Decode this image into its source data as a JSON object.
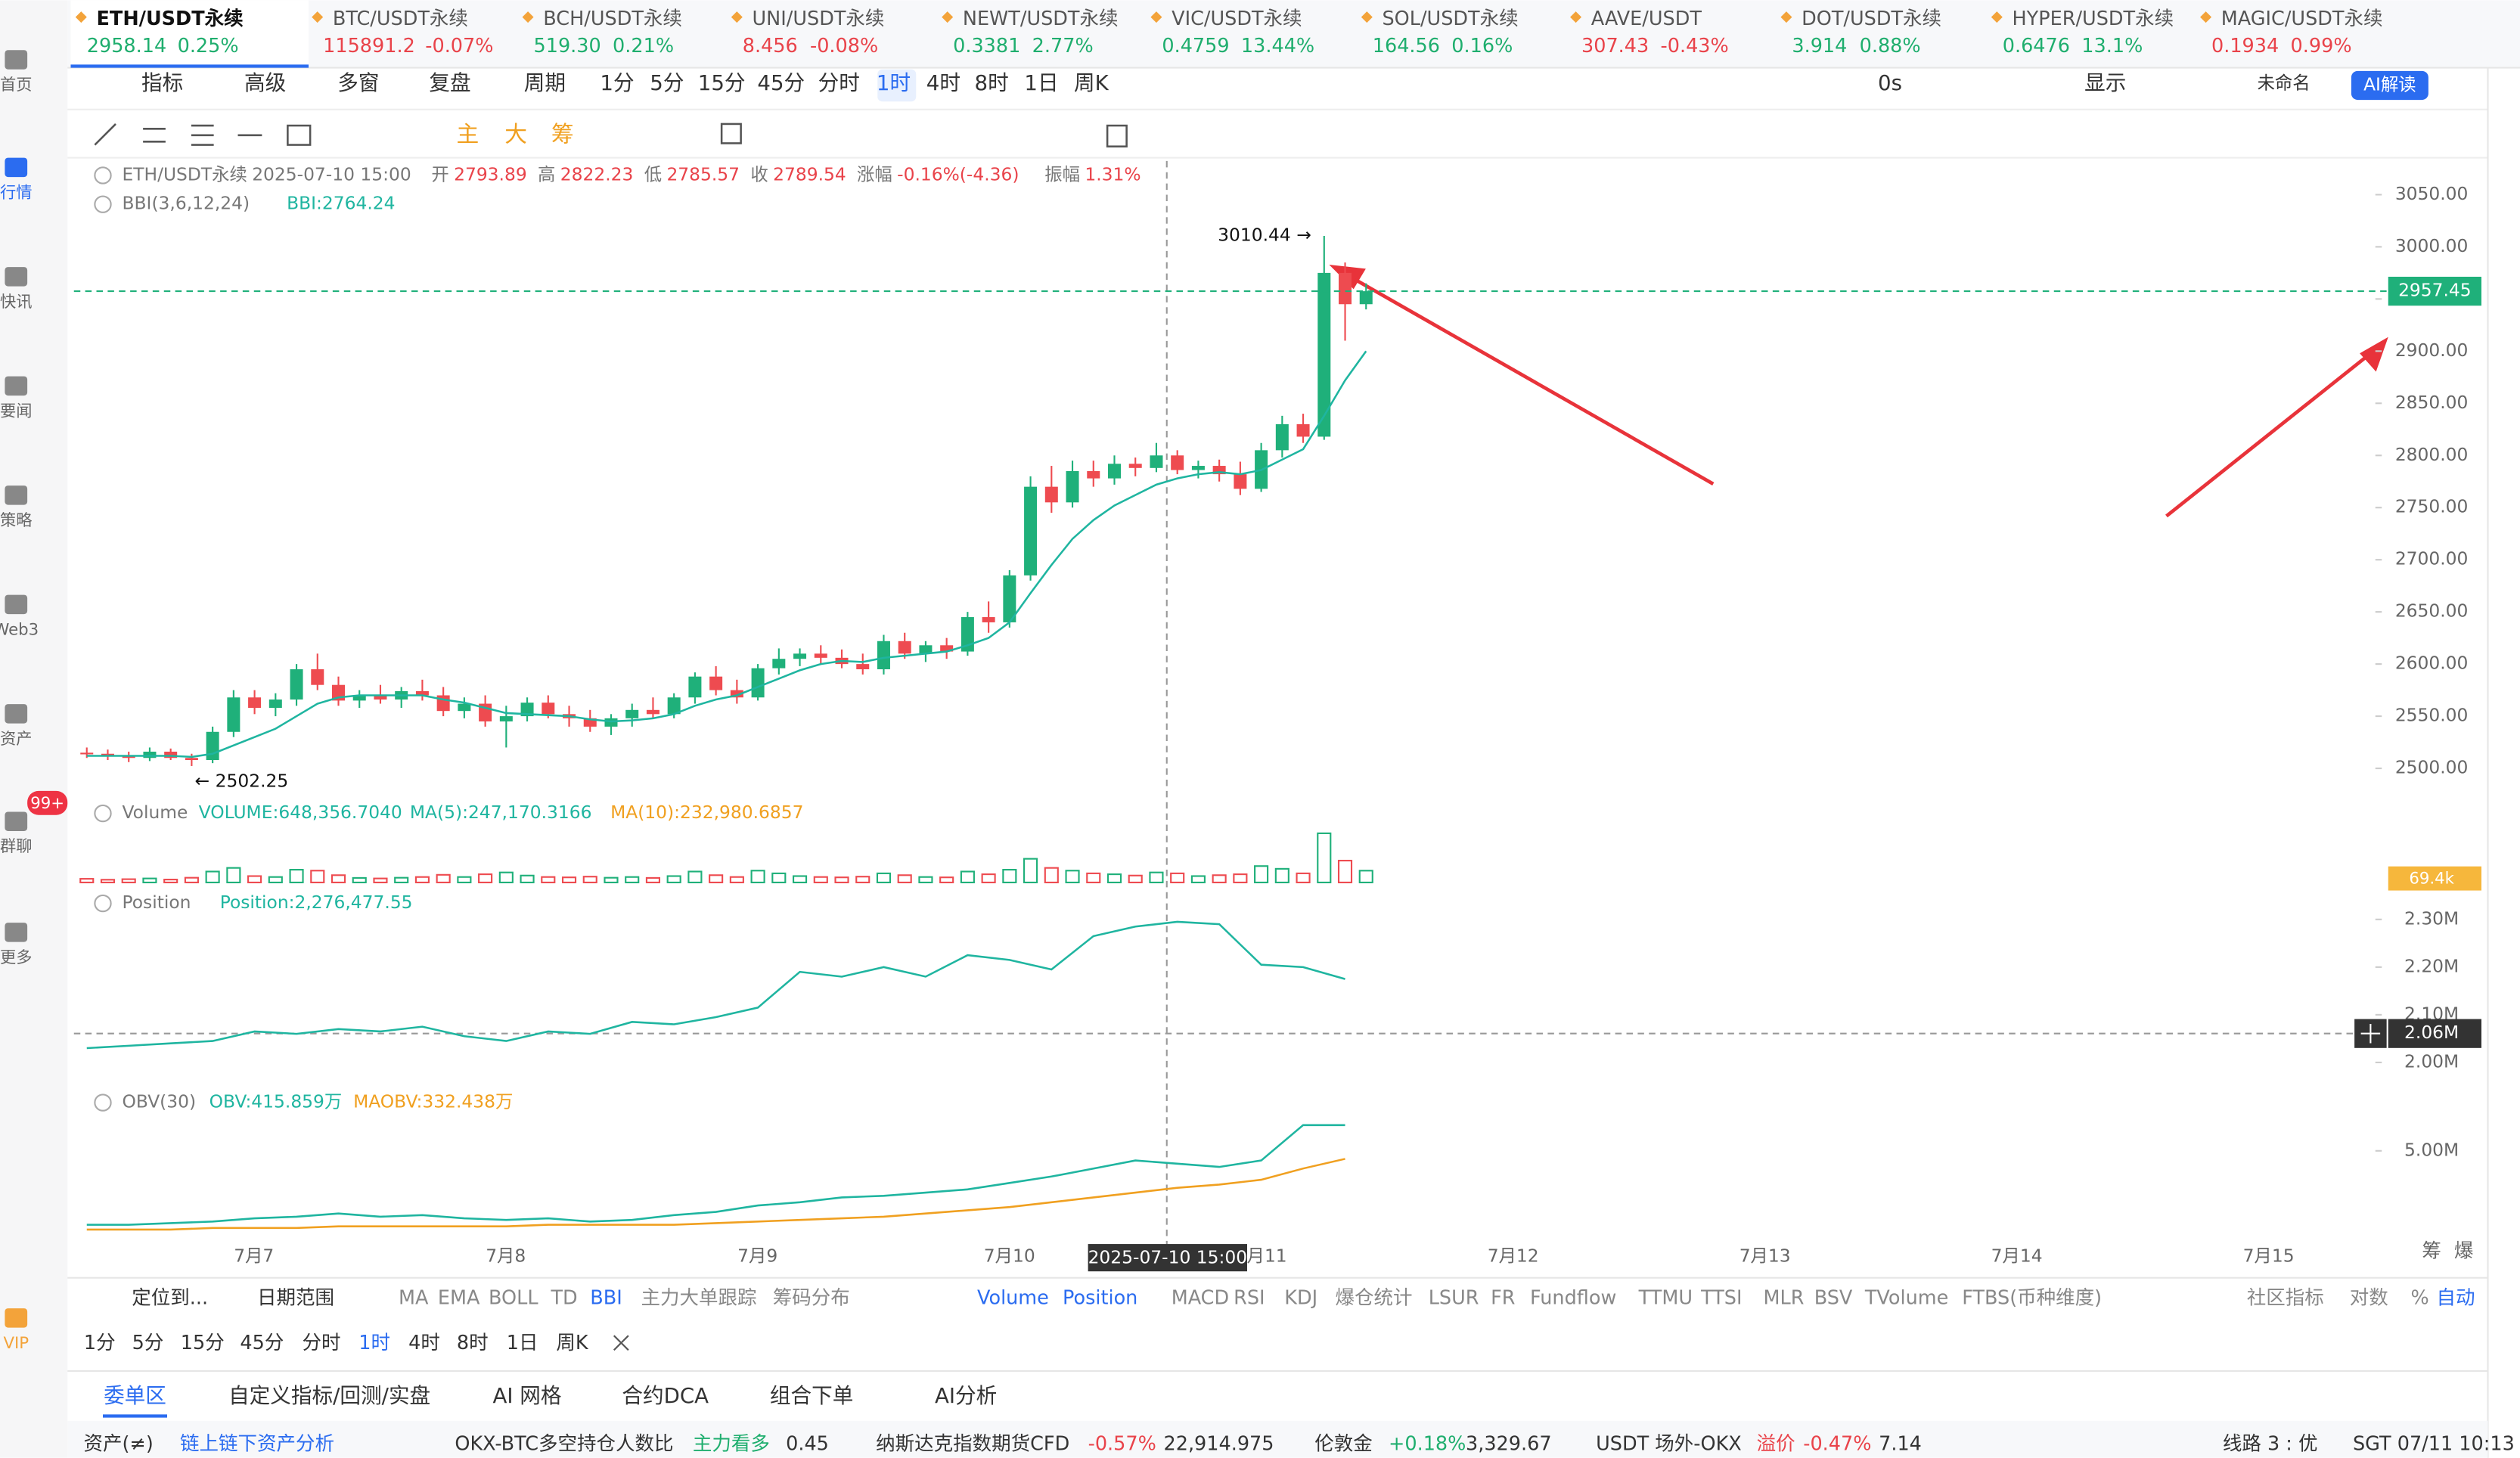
{
  "tickers": [
    {
      "symbol": "ETH/USDT永续",
      "price": "2958.14",
      "change": "0.25%",
      "color": "#1fae6e"
    },
    {
      "symbol": "BTC/USDT永续",
      "price": "115891.2",
      "change": "-0.07%",
      "color": "#e9434a"
    },
    {
      "symbol": "BCH/USDT永续",
      "price": "519.30",
      "change": "0.21%",
      "color": "#1fae6e"
    },
    {
      "symbol": "UNI/USDT永续",
      "price": "8.456",
      "change": "-0.08%",
      "color": "#e9434a"
    },
    {
      "symbol": "NEWT/USDT永续",
      "price": "0.3381",
      "change": "2.77%",
      "color": "#1fae6e"
    },
    {
      "symbol": "VIC/USDT永续",
      "price": "0.4759",
      "change": "13.44%",
      "color": "#1fae6e"
    },
    {
      "symbol": "SOL/USDT永续",
      "price": "164.56",
      "change": "0.16%",
      "color": "#1fae6e"
    },
    {
      "symbol": "AAVE/USDT",
      "price": "307.43",
      "change": "-0.43%",
      "color": "#e9434a"
    },
    {
      "symbol": "DOT/USDT永续",
      "price": "3.914",
      "change": "0.88%",
      "color": "#1fae6e"
    },
    {
      "symbol": "HYPER/USDT永续",
      "price": "0.6476",
      "change": "13.1%",
      "color": "#1fae6e"
    },
    {
      "symbol": "MAGIC/USDT永续",
      "price": "0.1934",
      "change": "0.99%",
      "color": "#e9434a"
    }
  ],
  "sidebar": {
    "items": [
      "首页",
      "行情",
      "快讯",
      "要闻",
      "策略",
      "Web3",
      "资产",
      "群聊",
      "更多",
      "VIP"
    ],
    "badge": "99+"
  },
  "toolbar": {
    "left": [
      "指标",
      "高级",
      "多窗",
      "复盘"
    ],
    "period": "周期",
    "intervals": [
      "1分",
      "5分",
      "15分",
      "45分",
      "分时",
      "1时",
      "4时",
      "8时",
      "1日",
      "周K"
    ],
    "right": [
      "0s",
      "显示",
      "未命名"
    ],
    "ai": "AI解读"
  },
  "draw_tools": [
    "主",
    "大",
    "筹"
  ],
  "chart_data": [
    {
      "type": "candlestick",
      "legend": {
        "symbol": "ETH/USDT永续",
        "time": "2025-07-10 15:00",
        "fields": [
          [
            "开",
            "2793.89"
          ],
          [
            "高",
            "2822.23"
          ],
          [
            "低",
            "2785.57"
          ],
          [
            "收",
            "2789.54"
          ],
          [
            "涨幅",
            "-0.16%(-4.36)"
          ],
          [
            "振幅",
            "1.31%"
          ]
        ]
      },
      "indicator": {
        "name": "BBI(3,6,12,24)",
        "value": "BBI:2764.24",
        "color": "#1fb5a0"
      },
      "annotations": {
        "high": "3010.44 →",
        "low": "← 2502.25"
      },
      "last_price": {
        "value": 2957.45,
        "label": "2957.45"
      },
      "crosshair_time": "2025-07-10 15:00",
      "xticks": [
        "7月7",
        "7月8",
        "7月9",
        "7月10",
        "7月11",
        "7月12",
        "7月13",
        "7月14",
        "7月15"
      ],
      "ylim": [
        2481.5,
        3082.35
      ],
      "yticks": [
        {
          "value": 3050,
          "label": "3050.00"
        },
        {
          "value": 3000,
          "label": "3000.00"
        },
        {
          "value": 2950,
          "label": "2950.00"
        },
        {
          "value": 2900,
          "label": "2900.00"
        },
        {
          "value": 2850,
          "label": "2850.00"
        },
        {
          "value": 2800,
          "label": "2800.00"
        },
        {
          "value": 2750,
          "label": "2750.00"
        },
        {
          "value": 2700,
          "label": "2700.00"
        },
        {
          "value": 2650,
          "label": "2650.00"
        },
        {
          "value": 2600,
          "label": "2600.00"
        },
        {
          "value": 2550,
          "label": "2550.00"
        },
        {
          "value": 2500,
          "label": "2500.00"
        }
      ],
      "up_color": "#1fb07a",
      "down_color": "#ee4b50",
      "candles": [
        [
          2515,
          2520,
          2510,
          2514
        ],
        [
          2514,
          2518,
          2508,
          2512
        ],
        [
          2512,
          2516,
          2506,
          2510
        ],
        [
          2510,
          2520,
          2507,
          2516
        ],
        [
          2516,
          2519,
          2508,
          2510
        ],
        [
          2510,
          2514,
          2502.25,
          2508
        ],
        [
          2508,
          2540,
          2505,
          2535
        ],
        [
          2535,
          2575,
          2530,
          2568
        ],
        [
          2568,
          2575,
          2552,
          2558
        ],
        [
          2558,
          2572,
          2550,
          2566
        ],
        [
          2566,
          2600,
          2560,
          2595
        ],
        [
          2595,
          2610,
          2575,
          2580
        ],
        [
          2580,
          2588,
          2560,
          2565
        ],
        [
          2565,
          2575,
          2558,
          2570
        ],
        [
          2570,
          2580,
          2562,
          2566
        ],
        [
          2566,
          2578,
          2558,
          2574
        ],
        [
          2574,
          2585,
          2565,
          2570
        ],
        [
          2570,
          2578,
          2550,
          2555
        ],
        [
          2555,
          2568,
          2548,
          2562
        ],
        [
          2562,
          2570,
          2540,
          2545
        ],
        [
          2545,
          2560,
          2520,
          2550
        ],
        [
          2550,
          2568,
          2545,
          2563
        ],
        [
          2563,
          2570,
          2548,
          2552
        ],
        [
          2552,
          2560,
          2540,
          2548
        ],
        [
          2548,
          2556,
          2535,
          2540
        ],
        [
          2540,
          2552,
          2532,
          2548
        ],
        [
          2548,
          2562,
          2540,
          2556
        ],
        [
          2556,
          2568,
          2548,
          2552
        ],
        [
          2552,
          2572,
          2548,
          2568
        ],
        [
          2568,
          2592,
          2562,
          2588
        ],
        [
          2588,
          2598,
          2570,
          2575
        ],
        [
          2575,
          2585,
          2562,
          2568
        ],
        [
          2568,
          2600,
          2565,
          2596
        ],
        [
          2596,
          2615,
          2590,
          2605
        ],
        [
          2605,
          2615,
          2598,
          2610
        ],
        [
          2610,
          2618,
          2600,
          2606
        ],
        [
          2606,
          2614,
          2596,
          2600
        ],
        [
          2600,
          2610,
          2590,
          2595
        ],
        [
          2595,
          2628,
          2590,
          2622
        ],
        [
          2622,
          2630,
          2605,
          2610
        ],
        [
          2610,
          2622,
          2602,
          2618
        ],
        [
          2618,
          2625,
          2605,
          2612
        ],
        [
          2612,
          2650,
          2608,
          2645
        ],
        [
          2645,
          2660,
          2630,
          2640
        ],
        [
          2640,
          2690,
          2635,
          2685
        ],
        [
          2685,
          2780,
          2680,
          2770
        ],
        [
          2770,
          2790,
          2745,
          2755
        ],
        [
          2755,
          2795,
          2750,
          2785
        ],
        [
          2785,
          2795,
          2770,
          2778
        ],
        [
          2778,
          2800,
          2772,
          2792
        ],
        [
          2792,
          2798,
          2780,
          2788
        ],
        [
          2788,
          2812,
          2784,
          2800
        ],
        [
          2800,
          2805,
          2782,
          2786
        ],
        [
          2786,
          2795,
          2778,
          2790
        ],
        [
          2790,
          2796,
          2775,
          2782
        ],
        [
          2782,
          2794,
          2762,
          2768
        ],
        [
          2768,
          2812,
          2765,
          2805
        ],
        [
          2805,
          2838,
          2798,
          2830
        ],
        [
          2830,
          2840,
          2812,
          2818
        ],
        [
          2818,
          3010.44,
          2815,
          2975
        ],
        [
          2975,
          2985,
          2910,
          2945
        ],
        [
          2945,
          2965,
          2940,
          2957.45
        ]
      ],
      "bbi": [
        2512,
        2512,
        2512,
        2512,
        2512,
        2511,
        2514,
        2522,
        2530,
        2538,
        2550,
        2562,
        2568,
        2570,
        2570,
        2570,
        2570,
        2566,
        2563,
        2558,
        2553,
        2552,
        2551,
        2550,
        2547,
        2545,
        2546,
        2548,
        2552,
        2560,
        2566,
        2570,
        2578,
        2586,
        2594,
        2600,
        2603,
        2602,
        2606,
        2608,
        2610,
        2612,
        2618,
        2625,
        2640,
        2668,
        2695,
        2720,
        2738,
        2752,
        2762,
        2772,
        2778,
        2782,
        2784,
        2782,
        2786,
        2796,
        2806,
        2838,
        2872,
        2900
      ]
    },
    {
      "type": "bar",
      "legend": {
        "name": "Volume",
        "fields": [
          {
            "text": "VOLUME:648,356.7040",
            "color": "#1fb5a0"
          },
          {
            "text": "MA(5):247,170.3166",
            "color": "#1fb5a0"
          },
          {
            "text": "MA(10):232,980.6857",
            "color": "#f0a020"
          }
        ]
      },
      "axis_label": "69.4k",
      "ylim": [
        0,
        3000000
      ],
      "values": [
        200000,
        150000,
        180000,
        220000,
        160000,
        260000,
        600000,
        800000,
        350000,
        300000,
        700000,
        650000,
        400000,
        250000,
        220000,
        260000,
        300000,
        420000,
        300000,
        450000,
        550000,
        380000,
        300000,
        280000,
        320000,
        260000,
        300000,
        250000,
        350000,
        600000,
        400000,
        300000,
        650000,
        500000,
        350000,
        300000,
        280000,
        320000,
        500000,
        400000,
        300000,
        280000,
        600000,
        450000,
        700000,
        1300000,
        800000,
        650000,
        500000,
        450000,
        380000,
        550000,
        500000,
        350000,
        400000,
        450000,
        900000,
        750000,
        500000,
        2700000,
        1200000,
        648356
      ]
    },
    {
      "type": "line",
      "legend": {
        "name": "Position",
        "fields": [
          {
            "text": "Position:2,276,477.55",
            "color": "#1fb5a0"
          }
        ]
      },
      "crosshair": "2.06M",
      "color": "#1fb5a0",
      "ylim": [
        1962900,
        2357300
      ],
      "yticks": [
        {
          "value": 2300000,
          "label": "2.30M"
        },
        {
          "value": 2200000,
          "label": "2.20M"
        },
        {
          "value": 2100000,
          "label": "2.10M"
        },
        {
          "value": 2000000,
          "label": "2.00M"
        }
      ],
      "series": [
        {
          "name": "Position",
          "color": "#1fb5a0",
          "values": [
            2030000,
            2035000,
            2040000,
            2045000,
            2065000,
            2060000,
            2070000,
            2065000,
            2075000,
            2055000,
            2045000,
            2065000,
            2060000,
            2085000,
            2080000,
            2095000,
            2115000,
            2190000,
            2180000,
            2200000,
            2180000,
            2225000,
            2215000,
            2195000,
            2265000,
            2285000,
            2295000,
            2290000,
            2205000,
            2200000,
            2175000
          ]
        }
      ]
    },
    {
      "type": "line",
      "legend": {
        "name": "OBV(30)",
        "fields": [
          {
            "text": "OBV:415.859万",
            "color": "#1fb5a0"
          },
          {
            "text": "MAOBV:332.438万",
            "color": "#f0a020"
          }
        ]
      },
      "ylim": [
        0,
        7500000
      ],
      "yticks": [
        {
          "value": 5000000,
          "label": "5.00M"
        }
      ],
      "series": [
        {
          "name": "OBV",
          "color": "#1fb5a0",
          "values": [
            577000,
            577000,
            673000,
            769000,
            962000,
            1058000,
            1250000,
            1058000,
            1154000,
            962000,
            865000,
            962000,
            769000,
            865000,
            1154000,
            1346000,
            1731000,
            1923000,
            2212000,
            2308000,
            2500000,
            2692000,
            3077000,
            3462000,
            3942000,
            4423000,
            4231000,
            4038000,
            4423000,
            6538000,
            6538000
          ]
        },
        {
          "name": "MAOBV",
          "color": "#f0a020",
          "values": [
            288000,
            288000,
            288000,
            385000,
            385000,
            385000,
            481000,
            481000,
            481000,
            481000,
            481000,
            577000,
            577000,
            577000,
            577000,
            673000,
            769000,
            865000,
            962000,
            1058000,
            1250000,
            1442000,
            1635000,
            1923000,
            2212000,
            2500000,
            2788000,
            2981000,
            3269000,
            3942000,
            4519000
          ]
        }
      ]
    }
  ],
  "corner_tools": [
    "筹",
    "爆"
  ],
  "indicator_bar": {
    "locate": "定位到...",
    "range": "日期范围",
    "main": [
      "MA",
      "EMA",
      "BOLL",
      "TD",
      "BBI",
      "主力大单跟踪",
      "筹码分布"
    ],
    "sub": [
      "Volume",
      "Position",
      "MACD",
      "RSI",
      "KDJ",
      "爆仓统计",
      "LSUR",
      "FR",
      "Fundflow",
      "TTMU",
      "TTSI",
      "MLR",
      "BSV",
      "TVolume",
      "FTBS(币种维度)"
    ],
    "right": [
      "社区指标",
      "对数",
      "%",
      "自动"
    ]
  },
  "interval_bar": [
    "1分",
    "5分",
    "15分",
    "45分",
    "分时",
    "1时",
    "4时",
    "8时",
    "1日",
    "周K"
  ],
  "tabs": [
    "委单区",
    "自定义指标/回测/实盘",
    "AI 网格",
    "合约DCA",
    "组合下单",
    "AI分析"
  ],
  "status": [
    [
      "资产(≠)",
      "#333"
    ],
    [
      "链上链下资产分析",
      "#2b6cf0"
    ],
    [
      "OKX-BTC多空持仓人数比",
      "#333"
    ],
    [
      "主力看多",
      "#1fae6e"
    ],
    [
      "0.45",
      "#333"
    ],
    [
      "纳斯达克指数期货CFD",
      "#333"
    ],
    [
      "-0.57%",
      "#e9434a"
    ],
    [
      "22,914.975",
      "#333"
    ],
    [
      "伦敦金",
      "#333"
    ],
    [
      "+0.18%",
      "#1fae6e"
    ],
    [
      "3,329.67",
      "#333"
    ],
    [
      "USDT 场外-OKX",
      "#333"
    ],
    [
      "溢价",
      "#e9434a"
    ],
    [
      "-0.47%",
      "#e9434a"
    ],
    [
      "7.14",
      "#333"
    ],
    [
      "线路 3 : 优",
      "#333"
    ],
    [
      "SGT 07/11 10:13",
      "#333"
    ]
  ]
}
